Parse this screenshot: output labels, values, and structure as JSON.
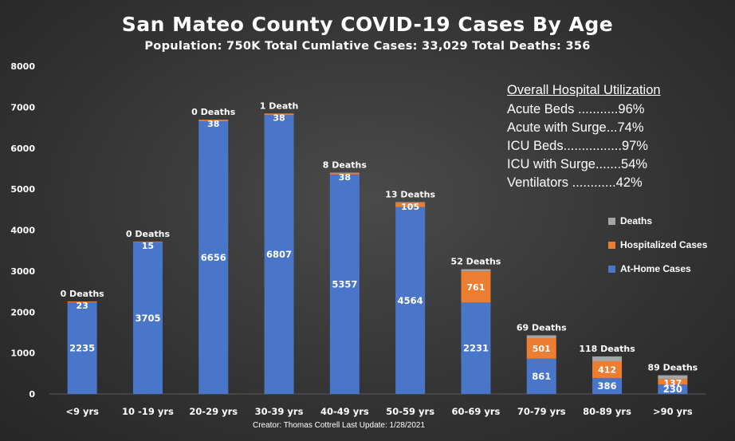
{
  "colors": {
    "at_home": "#4a76c9",
    "hospitalized": "#ed7d31",
    "deaths": "#a5a5a5",
    "text": "#ffffff",
    "grid": "#5a5a5a"
  },
  "credit": "Creator: Thomas Cottrell   Last Update: 1/28/2021",
  "hospital_utilization": {
    "title": "Overall Hospital Utilization",
    "lines": [
      "Acute Beds ...........96%",
      "Acute with Surge...74%",
      "ICU Beds................97%",
      "ICU with Surge.......54%",
      "Ventilators ............42%"
    ]
  },
  "chart_data": {
    "type": "bar",
    "stacked": true,
    "title": "San Mateo County COVID-19 Cases By Age",
    "subtitle": "Population: 750K   Total Cumlative Cases: 33,029   Total Deaths: 356",
    "categories": [
      "<9 yrs",
      "10 -19 yrs",
      "20-29 yrs",
      "30-39 yrs",
      "40-49 yrs",
      "50-59 yrs",
      "60-69 yrs",
      "70-79 yrs",
      "80-89 yrs",
      ">90 yrs"
    ],
    "series": [
      {
        "name": "At-Home Cases",
        "values": [
          2235,
          3705,
          6656,
          6807,
          5357,
          4564,
          2231,
          861,
          386,
          230
        ]
      },
      {
        "name": "Hospitalized Cases",
        "values": [
          23,
          15,
          38,
          38,
          38,
          105,
          761,
          501,
          412,
          137
        ]
      },
      {
        "name": "Deaths",
        "values": [
          0,
          0,
          0,
          1,
          8,
          13,
          52,
          69,
          118,
          89
        ]
      }
    ],
    "death_labels": [
      "0 Deaths",
      "0 Deaths",
      "0 Deaths",
      "1 Death",
      "8 Deaths",
      "13 Deaths",
      "52 Deaths",
      "69 Deaths",
      "118 Deaths",
      "89 Deaths"
    ],
    "legend": [
      "Deaths",
      "Hospitalized Cases",
      "At-Home Cases"
    ],
    "ylim": [
      0,
      8000
    ],
    "yticks": [
      "0",
      "1000",
      "2000",
      "3000",
      "4000",
      "5000",
      "6000",
      "7000",
      "8000"
    ],
    "grid": false,
    "legend_position": "right"
  }
}
